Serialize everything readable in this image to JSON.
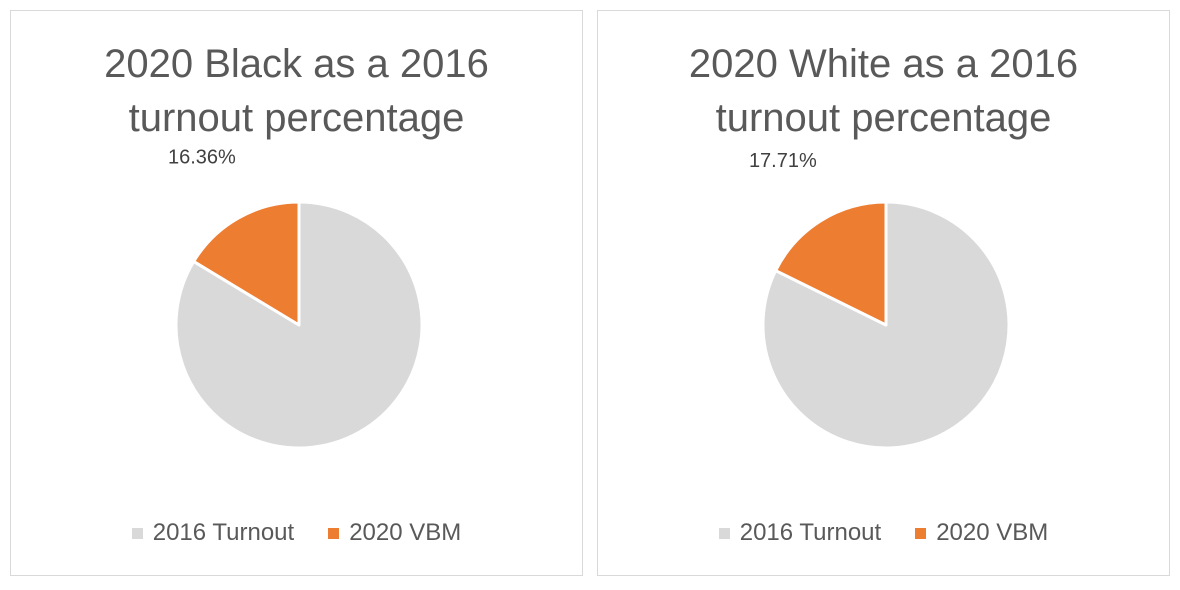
{
  "colors": {
    "turnout_2016": "#d9d9d9",
    "vbm_2020": "#ed7d31"
  },
  "chart_data": [
    {
      "type": "pie",
      "title_lines": [
        "2020 Black as a 2016",
        "turnout percentage"
      ],
      "categories": [
        "2016 Turnout",
        "2020 VBM"
      ],
      "values": [
        83.64,
        16.36
      ],
      "data_label": "16.36%",
      "legend_position": "bottom"
    },
    {
      "type": "pie",
      "title_lines": [
        "2020 White as a 2016",
        "turnout percentage"
      ],
      "categories": [
        "2016 Turnout",
        "2020 VBM"
      ],
      "values": [
        82.29,
        17.71
      ],
      "data_label": "17.71%",
      "legend_position": "bottom"
    }
  ]
}
